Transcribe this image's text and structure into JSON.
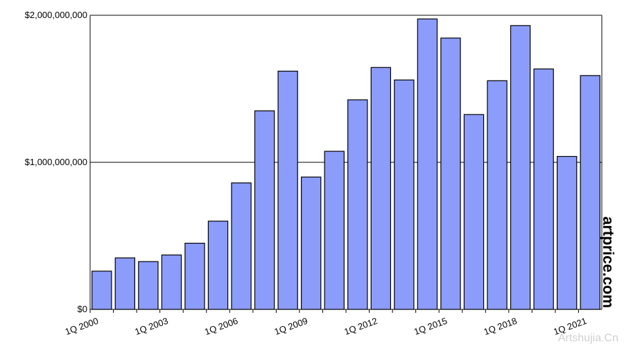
{
  "chart_data": {
    "type": "bar",
    "categories": [
      "1Q 2000",
      null,
      null,
      "1Q 2003",
      null,
      null,
      "1Q 2006",
      null,
      null,
      "1Q 2009",
      null,
      null,
      "1Q 2012",
      null,
      null,
      "1Q 2015",
      null,
      null,
      "1Q 2018",
      null,
      null,
      "1Q 2021"
    ],
    "values": [
      260000000,
      350000000,
      325000000,
      370000000,
      450000000,
      600000000,
      860000000,
      1350000000,
      1620000000,
      900000000,
      1075000000,
      1425000000,
      1645000000,
      1560000000,
      1975000000,
      1845000000,
      1325000000,
      1555000000,
      1930000000,
      1635000000,
      1040000000,
      1590000000
    ],
    "color": "#8c9cfb",
    "ylim": [
      0,
      2000000000
    ],
    "yticks": [
      {
        "value": 0,
        "label": "$0"
      },
      {
        "value": 1000000000,
        "label": "$1,000,000,000"
      },
      {
        "value": 2000000000,
        "label": "$2,000,000,000"
      }
    ],
    "grid": true,
    "watermarks": [
      "artprice.com",
      "Artshujia.Cn"
    ]
  }
}
